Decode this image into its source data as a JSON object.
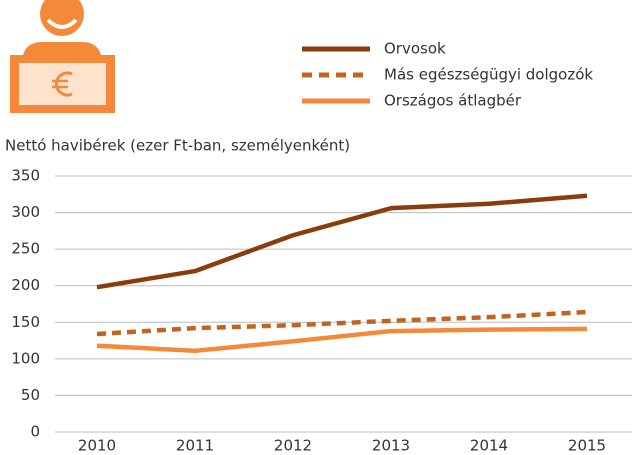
{
  "chart_data": {
    "type": "line",
    "y_axis_label": "Nettó havibérek (ezer Ft-ban, személyenként)",
    "categories": [
      "2010",
      "2011",
      "2012",
      "2013",
      "2014",
      "2015"
    ],
    "series": [
      {
        "name": "Orvosok",
        "color": "#8a3d0c",
        "dashed": false,
        "values": [
          198,
          220,
          269,
          306,
          312,
          323
        ]
      },
      {
        "name": "Más egészségügyi dolgozók",
        "color": "#c4631f",
        "dashed": true,
        "values": [
          134,
          142,
          146,
          152,
          157,
          164
        ]
      },
      {
        "name": "Országos átlagbér",
        "color": "#f5893a",
        "dashed": false,
        "values": [
          118,
          111,
          124,
          138,
          140,
          141
        ]
      }
    ],
    "ylim": [
      0,
      350
    ],
    "yticks": [
      0,
      50,
      100,
      150,
      200,
      250,
      300,
      350
    ],
    "grid": true
  }
}
